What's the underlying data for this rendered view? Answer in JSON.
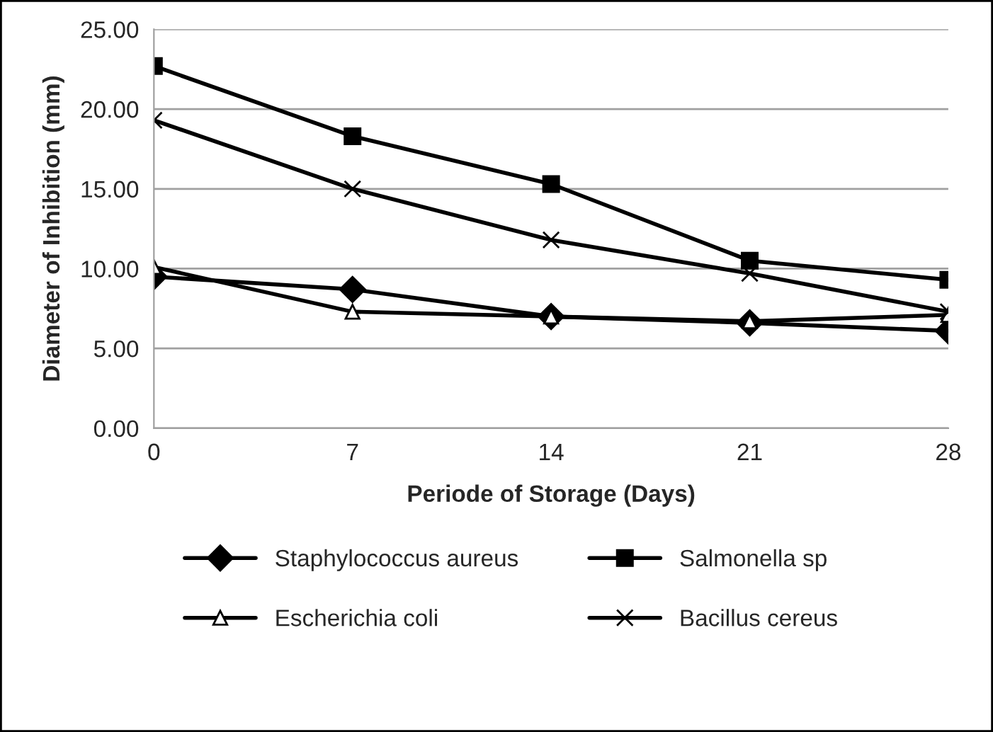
{
  "chart_data": {
    "type": "line",
    "xlabel": "Periode of Storage (Days)",
    "ylabel": "Diameter of Inhibition (mm)",
    "categories": [
      "0",
      "7",
      "14",
      "21",
      "28"
    ],
    "series": [
      {
        "name": "Staphylococcus aureus",
        "color": "#000000",
        "marker": "diamond",
        "values": [
          9.5,
          8.7,
          7.0,
          6.6,
          6.1
        ]
      },
      {
        "name": "Salmonella sp",
        "color": "#000000",
        "marker": "square",
        "values": [
          22.7,
          18.3,
          15.3,
          10.5,
          9.3
        ]
      },
      {
        "name": "Escherichia coli",
        "color": "#000000",
        "marker": "triangle",
        "values": [
          10.1,
          7.3,
          7.0,
          6.7,
          7.1
        ]
      },
      {
        "name": "Bacillus cereus",
        "color": "#000000",
        "marker": "cross",
        "values": [
          19.3,
          15.0,
          11.8,
          9.7,
          7.3
        ]
      }
    ],
    "ylim": [
      0,
      25
    ],
    "yticks": [
      {
        "value": 0,
        "label": "0.00"
      },
      {
        "value": 5,
        "label": "5.00"
      },
      {
        "value": 10,
        "label": "10.00"
      },
      {
        "value": 15,
        "label": "15.00"
      },
      {
        "value": 20,
        "label": "20.00"
      },
      {
        "value": 25,
        "label": "25.00"
      }
    ],
    "grid": "y",
    "legend": "bottom",
    "line_style": "solid"
  }
}
